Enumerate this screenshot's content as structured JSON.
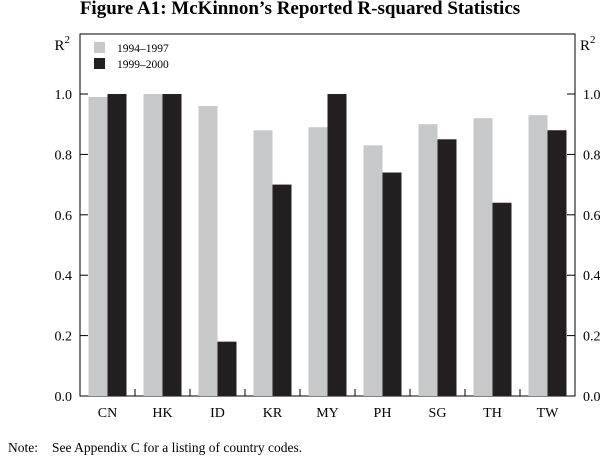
{
  "chart_data": {
    "type": "bar",
    "title": "Figure A1: McKinnon’s Reported R-squared Statistics",
    "ylabel_base": "R",
    "ylabel_sup": "2",
    "ylim": [
      0,
      1.0
    ],
    "yticks": [
      "0.0",
      "0.2",
      "0.4",
      "0.6",
      "0.8",
      "1.0"
    ],
    "ytick_values": [
      0.0,
      0.2,
      0.4,
      0.6,
      0.8,
      1.0
    ],
    "categories": [
      "CN",
      "HK",
      "ID",
      "KR",
      "MY",
      "PH",
      "SG",
      "TH",
      "TW"
    ],
    "series": [
      {
        "name": "1994–1997",
        "color": "#c7c8ca",
        "values": [
          0.99,
          1.0,
          0.96,
          0.88,
          0.89,
          0.83,
          0.9,
          0.92,
          0.93
        ]
      },
      {
        "name": "1999–2000",
        "color": "#231f20",
        "values": [
          1.0,
          1.0,
          0.18,
          0.7,
          1.0,
          0.74,
          0.85,
          0.64,
          0.88
        ]
      }
    ],
    "legend_position": "top-left",
    "grid": false
  },
  "note": {
    "label": "Note:",
    "text": "See Appendix C for a listing of country codes."
  }
}
